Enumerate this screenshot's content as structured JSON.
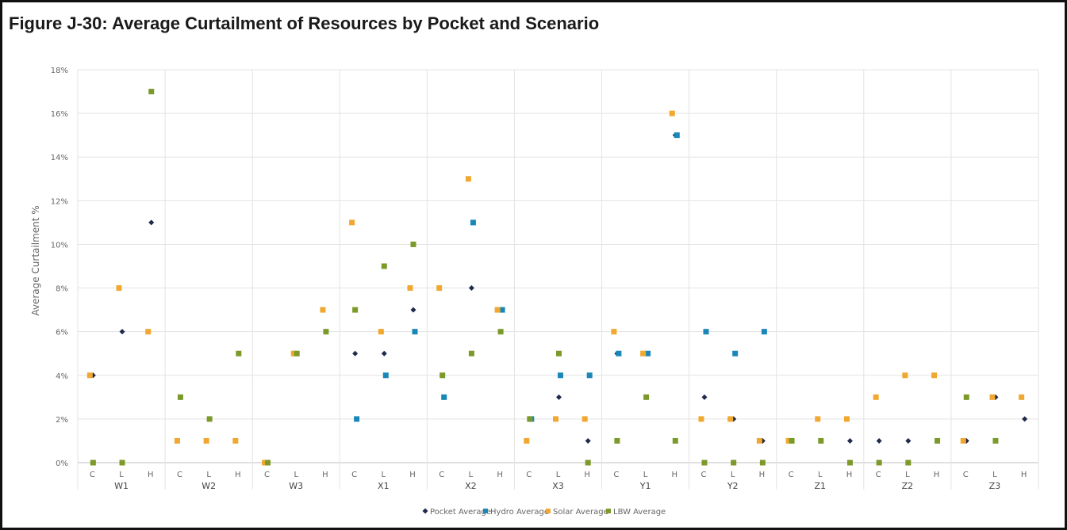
{
  "chart_data": {
    "type": "scatter",
    "title": "Figure J-30: Average Curtailment of Resources by Pocket and Scenario",
    "ylabel": "Average Curtailment %",
    "xlabel": "",
    "ylim": [
      0,
      18
    ],
    "y_ticks": [
      "0%",
      "2%",
      "4%",
      "6%",
      "8%",
      "10%",
      "12%",
      "14%",
      "16%",
      "18%"
    ],
    "groups": [
      "W1",
      "W2",
      "W3",
      "X1",
      "X2",
      "X3",
      "Y1",
      "Y2",
      "Z1",
      "Z2",
      "Z3"
    ],
    "scenarios": [
      "C",
      "L",
      "H"
    ],
    "grid": true,
    "legend_position": "bottom",
    "series": [
      {
        "name": "Pocket Average",
        "color": "#1f2a4d",
        "marker": "diamond",
        "values": [
          4,
          6,
          11,
          3,
          2,
          5,
          0,
          5,
          6,
          5,
          5,
          7,
          4,
          8,
          7,
          2,
          3,
          1,
          5,
          5,
          15,
          3,
          2,
          1,
          1,
          1,
          1,
          1,
          1,
          1,
          1,
          3,
          2
        ]
      },
      {
        "name": "Hydro Average",
        "color": "#1b87b8",
        "marker": "square",
        "values": [
          null,
          null,
          null,
          null,
          null,
          null,
          null,
          null,
          null,
          2,
          4,
          6,
          3,
          11,
          7,
          2,
          4,
          4,
          5,
          5,
          15,
          6,
          5,
          6,
          null,
          null,
          null,
          null,
          null,
          null,
          null,
          null,
          null
        ]
      },
      {
        "name": "Solar Average",
        "color": "#f0a830",
        "marker": "square",
        "values": [
          4,
          8,
          6,
          1,
          1,
          1,
          0,
          5,
          7,
          11,
          6,
          8,
          8,
          13,
          7,
          1,
          2,
          2,
          6,
          5,
          16,
          2,
          2,
          1,
          1,
          2,
          2,
          3,
          4,
          4,
          1,
          3,
          3
        ]
      },
      {
        "name": "LBW Average",
        "color": "#7c9a2a",
        "marker": "square",
        "values": [
          0,
          0,
          17,
          3,
          2,
          5,
          0,
          5,
          6,
          7,
          9,
          10,
          4,
          5,
          6,
          2,
          5,
          0,
          1,
          3,
          1,
          0,
          0,
          0,
          1,
          1,
          0,
          0,
          0,
          1,
          3,
          1,
          null
        ]
      }
    ]
  }
}
